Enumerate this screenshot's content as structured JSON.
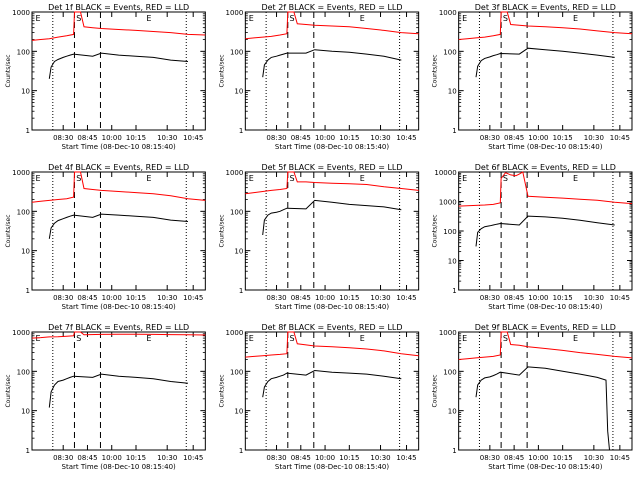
{
  "chart_data": [
    {
      "type": "line",
      "title": "Det 1f BLACK = Events, RED = LLD",
      "xlabel": "Start Time (08-Dec-10 08:15:40)",
      "ylabel": "Counts/sec",
      "yscale": "log",
      "ylim": [
        1,
        1000
      ],
      "xticks": [
        "08:30",
        "08:45",
        "10:00",
        "10:15",
        "10:30",
        "10:45"
      ],
      "yticks": [
        "1",
        "10",
        "100",
        "1000"
      ],
      "flags": [
        "E",
        "S",
        "E"
      ],
      "series": [
        {
          "color": "#ff0000",
          "x": [
            0,
            0.05,
            0.1,
            0.15,
            0.2,
            0.24,
            0.245,
            0.28,
            0.3,
            0.35,
            0.4,
            0.5,
            0.6,
            0.7,
            0.8,
            0.9,
            1.0
          ],
          "values": [
            190,
            200,
            210,
            230,
            250,
            270,
            1000,
            1000,
            420,
            400,
            380,
            360,
            340,
            320,
            300,
            270,
            260
          ]
        },
        {
          "color": "#000000",
          "x": [
            0.1,
            0.11,
            0.13,
            0.15,
            0.18,
            0.2,
            0.22,
            0.24,
            0.35,
            0.4,
            0.5,
            0.6,
            0.7,
            0.8,
            0.9
          ],
          "values": [
            20,
            40,
            55,
            62,
            70,
            75,
            80,
            85,
            75,
            90,
            80,
            75,
            70,
            60,
            55
          ]
        }
      ]
    },
    {
      "type": "line",
      "title": "Det 2f BLACK = Events, RED = LLD",
      "xlabel": "Start Time (08-Dec-10 08:15:40)",
      "ylabel": "Counts/sec",
      "yscale": "log",
      "ylim": [
        1,
        1000
      ],
      "xticks": [
        "08:30",
        "08:45",
        "10:00",
        "10:15",
        "10:30",
        "10:45"
      ],
      "yticks": [
        "1",
        "10",
        "100",
        "1000"
      ],
      "flags": [
        "E",
        "S",
        "E"
      ],
      "series": [
        {
          "color": "#ff0000",
          "x": [
            0,
            0.05,
            0.1,
            0.15,
            0.2,
            0.24,
            0.245,
            0.28,
            0.3,
            0.35,
            0.4,
            0.5,
            0.6,
            0.7,
            0.8,
            0.9,
            1.0
          ],
          "values": [
            210,
            220,
            230,
            240,
            260,
            280,
            1000,
            1000,
            500,
            480,
            460,
            440,
            420,
            380,
            340,
            300,
            280
          ]
        },
        {
          "color": "#000000",
          "x": [
            0.1,
            0.11,
            0.13,
            0.15,
            0.18,
            0.2,
            0.22,
            0.24,
            0.35,
            0.4,
            0.5,
            0.6,
            0.7,
            0.8,
            0.9
          ],
          "values": [
            22,
            45,
            60,
            70,
            75,
            80,
            85,
            90,
            90,
            110,
            100,
            95,
            85,
            75,
            60
          ]
        }
      ]
    },
    {
      "type": "line",
      "title": "Det 3f BLACK = Events, RED = LLD",
      "xlabel": "Start Time (08-Dec-10 08:15:40)",
      "ylabel": "Counts/sec",
      "yscale": "log",
      "ylim": [
        1,
        1000
      ],
      "xticks": [
        "08:30",
        "08:45",
        "10:00",
        "10:15",
        "10:30",
        "10:45"
      ],
      "yticks": [
        "1",
        "10",
        "100",
        "1000"
      ],
      "flags": [
        "E",
        "S",
        "E"
      ],
      "series": [
        {
          "color": "#ff0000",
          "x": [
            0,
            0.05,
            0.1,
            0.15,
            0.2,
            0.24,
            0.245,
            0.28,
            0.3,
            0.35,
            0.4,
            0.5,
            0.6,
            0.7,
            0.8,
            0.9,
            1.0
          ],
          "values": [
            200,
            210,
            220,
            230,
            250,
            270,
            1000,
            1000,
            480,
            460,
            440,
            420,
            400,
            370,
            330,
            300,
            280
          ]
        },
        {
          "color": "#000000",
          "x": [
            0.1,
            0.11,
            0.13,
            0.15,
            0.18,
            0.2,
            0.22,
            0.24,
            0.35,
            0.4,
            0.5,
            0.6,
            0.7,
            0.8,
            0.9
          ],
          "values": [
            22,
            42,
            58,
            66,
            72,
            78,
            82,
            88,
            85,
            120,
            110,
            100,
            90,
            80,
            70
          ]
        }
      ]
    },
    {
      "type": "line",
      "title": "Det 4f BLACK = Events, RED = LLD",
      "xlabel": "Start Time (08-Dec-10 08:15:40)",
      "ylabel": "Counts/sec",
      "yscale": "log",
      "ylim": [
        1,
        1000
      ],
      "xticks": [
        "08:30",
        "08:45",
        "10:00",
        "10:15",
        "10:30",
        "10:45"
      ],
      "yticks": [
        "1",
        "10",
        "100",
        "1000"
      ],
      "flags": [
        "E",
        "S",
        "E"
      ],
      "series": [
        {
          "color": "#ff0000",
          "x": [
            0,
            0.05,
            0.1,
            0.15,
            0.2,
            0.24,
            0.245,
            0.28,
            0.3,
            0.35,
            0.4,
            0.5,
            0.6,
            0.7,
            0.8,
            0.9,
            1.0
          ],
          "values": [
            170,
            180,
            190,
            200,
            210,
            230,
            1000,
            1000,
            380,
            360,
            340,
            320,
            300,
            280,
            250,
            210,
            190
          ]
        },
        {
          "color": "#000000",
          "x": [
            0.1,
            0.11,
            0.13,
            0.15,
            0.18,
            0.2,
            0.22,
            0.24,
            0.35,
            0.4,
            0.5,
            0.6,
            0.7,
            0.8,
            0.9
          ],
          "values": [
            20,
            38,
            50,
            58,
            65,
            70,
            75,
            80,
            70,
            85,
            80,
            75,
            70,
            60,
            55
          ]
        }
      ]
    },
    {
      "type": "line",
      "title": "Det 5f BLACK = Events, RED = LLD",
      "xlabel": "Start Time (08-Dec-10 08:15:40)",
      "ylabel": "Counts/sec",
      "yscale": "log",
      "ylim": [
        1,
        1000
      ],
      "xticks": [
        "08:30",
        "08:45",
        "10:00",
        "10:15",
        "10:30",
        "10:45"
      ],
      "yticks": [
        "1",
        "10",
        "100",
        "1000"
      ],
      "flags": [
        "E",
        "S",
        "E"
      ],
      "series": [
        {
          "color": "#ff0000",
          "x": [
            0,
            0.05,
            0.1,
            0.15,
            0.2,
            0.24,
            0.245,
            0.28,
            0.3,
            0.35,
            0.4,
            0.5,
            0.6,
            0.7,
            0.8,
            0.9,
            1.0
          ],
          "values": [
            280,
            300,
            320,
            340,
            360,
            380,
            1000,
            1000,
            560,
            560,
            540,
            520,
            500,
            480,
            420,
            380,
            340
          ]
        },
        {
          "color": "#000000",
          "x": [
            0.1,
            0.11,
            0.13,
            0.15,
            0.18,
            0.2,
            0.22,
            0.24,
            0.35,
            0.4,
            0.5,
            0.6,
            0.7,
            0.8,
            0.9
          ],
          "values": [
            25,
            60,
            80,
            90,
            95,
            100,
            110,
            120,
            115,
            190,
            170,
            150,
            140,
            130,
            110
          ]
        }
      ]
    },
    {
      "type": "line",
      "title": "Det 6f BLACK = Events, RED = LLD",
      "xlabel": "Start Time (08-Dec-10 08:15:40)",
      "ylabel": "Counts/sec",
      "yscale": "log",
      "ylim": [
        1,
        10000
      ],
      "xticks": [
        "08:30",
        "08:45",
        "10:00",
        "10:15",
        "10:30",
        "10:45"
      ],
      "yticks": [
        "1",
        "10",
        "100",
        "1000",
        "10000"
      ],
      "flags": [
        "E",
        "S",
        "E"
      ],
      "series": [
        {
          "color": "#ff0000",
          "x": [
            0,
            0.05,
            0.1,
            0.15,
            0.2,
            0.24,
            0.245,
            0.27,
            0.3,
            0.33,
            0.35,
            0.37,
            0.4,
            0.5,
            0.6,
            0.7,
            0.8,
            0.9,
            1.0
          ],
          "values": [
            700,
            720,
            740,
            760,
            800,
            900,
            6000,
            9500,
            8000,
            7500,
            8500,
            10000,
            1500,
            1400,
            1300,
            1200,
            1100,
            950,
            850
          ]
        },
        {
          "color": "#000000",
          "x": [
            0.1,
            0.11,
            0.13,
            0.15,
            0.18,
            0.2,
            0.22,
            0.24,
            0.35,
            0.4,
            0.5,
            0.6,
            0.7,
            0.8,
            0.9
          ],
          "values": [
            30,
            90,
            120,
            140,
            150,
            160,
            170,
            180,
            160,
            320,
            300,
            270,
            230,
            190,
            160
          ]
        }
      ]
    },
    {
      "type": "line",
      "title": "Det 7f BLACK = Events, RED = LLD",
      "xlabel": "Start Time (08-Dec-10 08:15:40)",
      "ylabel": "Counts/sec",
      "yscale": "log",
      "ylim": [
        1,
        1000
      ],
      "xticks": [
        "08:30",
        "08:45",
        "10:00",
        "10:15",
        "10:30",
        "10:45"
      ],
      "yticks": [
        "1",
        "10",
        "100",
        "1000"
      ],
      "flags": [
        "E",
        "S",
        "E"
      ],
      "series": [
        {
          "color": "#ff0000",
          "x": [
            0,
            0.05,
            0.1,
            0.15,
            0.2,
            0.24,
            0.245,
            0.28,
            0.3,
            0.4,
            0.5,
            0.6,
            0.7,
            0.8,
            0.9,
            1.0
          ],
          "values": [
            700,
            720,
            750,
            760,
            780,
            800,
            1000,
            1000,
            850,
            870,
            880,
            880,
            870,
            860,
            850,
            840
          ]
        },
        {
          "color": "#000000",
          "x": [
            0.1,
            0.11,
            0.13,
            0.15,
            0.18,
            0.2,
            0.22,
            0.24,
            0.35,
            0.4,
            0.5,
            0.6,
            0.7,
            0.8,
            0.9
          ],
          "values": [
            12,
            30,
            45,
            55,
            60,
            65,
            70,
            75,
            70,
            85,
            75,
            70,
            65,
            55,
            50
          ]
        }
      ]
    },
    {
      "type": "line",
      "title": "Det 8f BLACK = Events, RED = LLD",
      "xlabel": "Start Time (08-Dec-10 08:15:40)",
      "ylabel": "Counts/sec",
      "yscale": "log",
      "ylim": [
        1,
        1000
      ],
      "xticks": [
        "08:30",
        "08:45",
        "10:00",
        "10:15",
        "10:30",
        "10:45"
      ],
      "yticks": [
        "1",
        "10",
        "100",
        "1000"
      ],
      "flags": [
        "E",
        "S",
        "E"
      ],
      "series": [
        {
          "color": "#ff0000",
          "x": [
            0,
            0.05,
            0.1,
            0.15,
            0.2,
            0.24,
            0.245,
            0.28,
            0.3,
            0.35,
            0.4,
            0.5,
            0.6,
            0.7,
            0.8,
            0.9,
            1.0
          ],
          "values": [
            230,
            240,
            250,
            260,
            270,
            280,
            1000,
            1000,
            500,
            470,
            440,
            420,
            400,
            370,
            330,
            280,
            250
          ]
        },
        {
          "color": "#000000",
          "x": [
            0.1,
            0.11,
            0.13,
            0.15,
            0.18,
            0.2,
            0.22,
            0.24,
            0.35,
            0.4,
            0.5,
            0.6,
            0.7,
            0.8,
            0.9
          ],
          "values": [
            22,
            40,
            55,
            65,
            70,
            75,
            80,
            90,
            80,
            105,
            95,
            90,
            85,
            75,
            65
          ]
        }
      ]
    },
    {
      "type": "line",
      "title": "Det 9f BLACK = Events, RED = LLD",
      "xlabel": "Start Time (08-Dec-10 08:15:40)",
      "ylabel": "Counts/sec",
      "yscale": "log",
      "ylim": [
        1,
        1000
      ],
      "xticks": [
        "08:30",
        "08:45",
        "10:00",
        "10:15",
        "10:30",
        "10:45"
      ],
      "yticks": [
        "1",
        "10",
        "100",
        "1000"
      ],
      "flags": [
        "E",
        "S",
        "E"
      ],
      "series": [
        {
          "color": "#ff0000",
          "x": [
            0,
            0.05,
            0.1,
            0.15,
            0.2,
            0.24,
            0.245,
            0.28,
            0.3,
            0.35,
            0.4,
            0.5,
            0.6,
            0.7,
            0.8,
            0.9,
            1.0
          ],
          "values": [
            200,
            210,
            220,
            230,
            240,
            260,
            1000,
            1000,
            480,
            460,
            420,
            380,
            340,
            300,
            270,
            240,
            220
          ]
        },
        {
          "color": "#000000",
          "x": [
            0.1,
            0.11,
            0.13,
            0.15,
            0.18,
            0.2,
            0.22,
            0.24,
            0.35,
            0.4,
            0.5,
            0.6,
            0.7,
            0.8,
            0.85,
            0.86,
            0.87
          ],
          "values": [
            22,
            45,
            60,
            68,
            72,
            78,
            85,
            95,
            80,
            130,
            120,
            100,
            85,
            70,
            60,
            3,
            1
          ]
        }
      ]
    }
  ]
}
